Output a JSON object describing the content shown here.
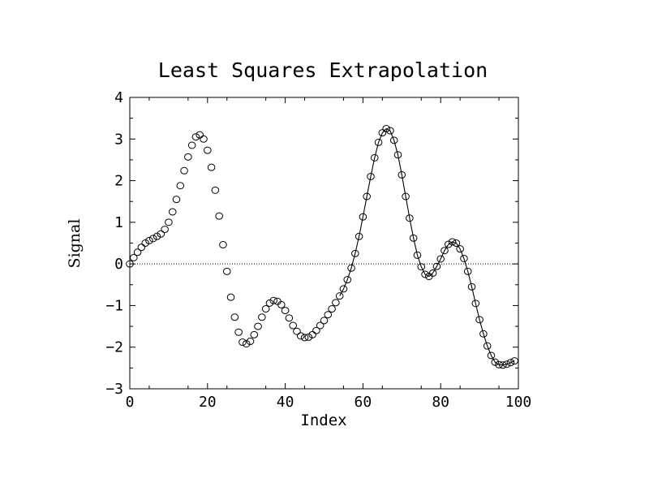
{
  "chart_data": {
    "type": "scatter",
    "title": "Least Squares Extrapolation",
    "xlabel": "Index",
    "ylabel": "Signal",
    "xlim": [
      0,
      100
    ],
    "ylim": [
      -3,
      4
    ],
    "xticks": [
      0,
      20,
      40,
      60,
      80,
      100
    ],
    "yticks": [
      -3,
      -2,
      -1,
      0,
      1,
      2,
      3,
      4
    ],
    "xtick_labels": [
      "0",
      "20",
      "40",
      "60",
      "80",
      "100"
    ],
    "ytick_labels": [
      "−3",
      "−2",
      "−1",
      "0",
      "1",
      "2",
      "3",
      "4"
    ],
    "zero_line": true,
    "grid": false,
    "series": [
      {
        "marker": "open-circle",
        "x": [
          0,
          1,
          2,
          3,
          4,
          5,
          6,
          7,
          8,
          9,
          10,
          11,
          12,
          13,
          14,
          15,
          16,
          17,
          18,
          19,
          20,
          21,
          22,
          23,
          24,
          25,
          26,
          27,
          28,
          29,
          30,
          31,
          32,
          33,
          34,
          35,
          36,
          37,
          38,
          39,
          40,
          41,
          42,
          43,
          44,
          45,
          46,
          47,
          48,
          49,
          50,
          51,
          52,
          53,
          54,
          55,
          56,
          57,
          58,
          59,
          60,
          61,
          62,
          63,
          64,
          65,
          66,
          67,
          68,
          69,
          70,
          71,
          72,
          73,
          74,
          75,
          76,
          77,
          78,
          79,
          80,
          81,
          82,
          83,
          84,
          85,
          86,
          87,
          88,
          89,
          90,
          91,
          92,
          93,
          94,
          95,
          96,
          97,
          98,
          99
        ],
        "y": [
          0.0,
          0.15,
          0.28,
          0.4,
          0.5,
          0.56,
          0.61,
          0.66,
          0.72,
          0.83,
          1.0,
          1.25,
          1.55,
          1.88,
          2.24,
          2.57,
          2.85,
          3.05,
          3.1,
          3.0,
          2.73,
          2.32,
          1.77,
          1.15,
          0.46,
          -0.18,
          -0.8,
          -1.28,
          -1.64,
          -1.88,
          -1.92,
          -1.86,
          -1.7,
          -1.5,
          -1.28,
          -1.08,
          -0.94,
          -0.88,
          -0.9,
          -0.98,
          -1.12,
          -1.3,
          -1.48,
          -1.62,
          -1.73,
          -1.77,
          -1.76,
          -1.7,
          -1.6,
          -1.48,
          -1.36,
          -1.22,
          -1.08,
          -0.93,
          -0.77,
          -0.6,
          -0.38,
          -0.1,
          0.25,
          0.66,
          1.13,
          1.62,
          2.1,
          2.55,
          2.92,
          3.15,
          3.25,
          3.2,
          2.97,
          2.62,
          2.14,
          1.62,
          1.1,
          0.62,
          0.21,
          -0.07,
          -0.25,
          -0.3,
          -0.22,
          -0.06,
          0.12,
          0.32,
          0.47,
          0.53,
          0.5,
          0.36,
          0.13,
          -0.18,
          -0.55,
          -0.95,
          -1.34,
          -1.68,
          -1.97,
          -2.2,
          -2.36,
          -2.42,
          -2.43,
          -2.41,
          -2.37,
          -2.33
        ]
      },
      {
        "marker": "line",
        "x": [
          54,
          55,
          56,
          57,
          58,
          59,
          60,
          61,
          62,
          63,
          64,
          65,
          66,
          67,
          68,
          69,
          70,
          71,
          72,
          73,
          74,
          75,
          76,
          77,
          78,
          79,
          80,
          81,
          82,
          83,
          84,
          85,
          86,
          87,
          88,
          89,
          90,
          91,
          92,
          93,
          94,
          95,
          96,
          97,
          98,
          99
        ],
        "y": [
          -0.77,
          -0.6,
          -0.38,
          -0.1,
          0.25,
          0.66,
          1.13,
          1.62,
          2.1,
          2.55,
          2.92,
          3.15,
          3.25,
          3.2,
          2.97,
          2.62,
          2.14,
          1.62,
          1.1,
          0.62,
          0.21,
          -0.07,
          -0.25,
          -0.3,
          -0.22,
          -0.06,
          0.12,
          0.32,
          0.47,
          0.53,
          0.5,
          0.36,
          0.13,
          -0.18,
          -0.55,
          -0.95,
          -1.34,
          -1.68,
          -1.97,
          -2.2,
          -2.36,
          -2.42,
          -2.43,
          -2.41,
          -2.37,
          -2.33
        ]
      }
    ]
  }
}
